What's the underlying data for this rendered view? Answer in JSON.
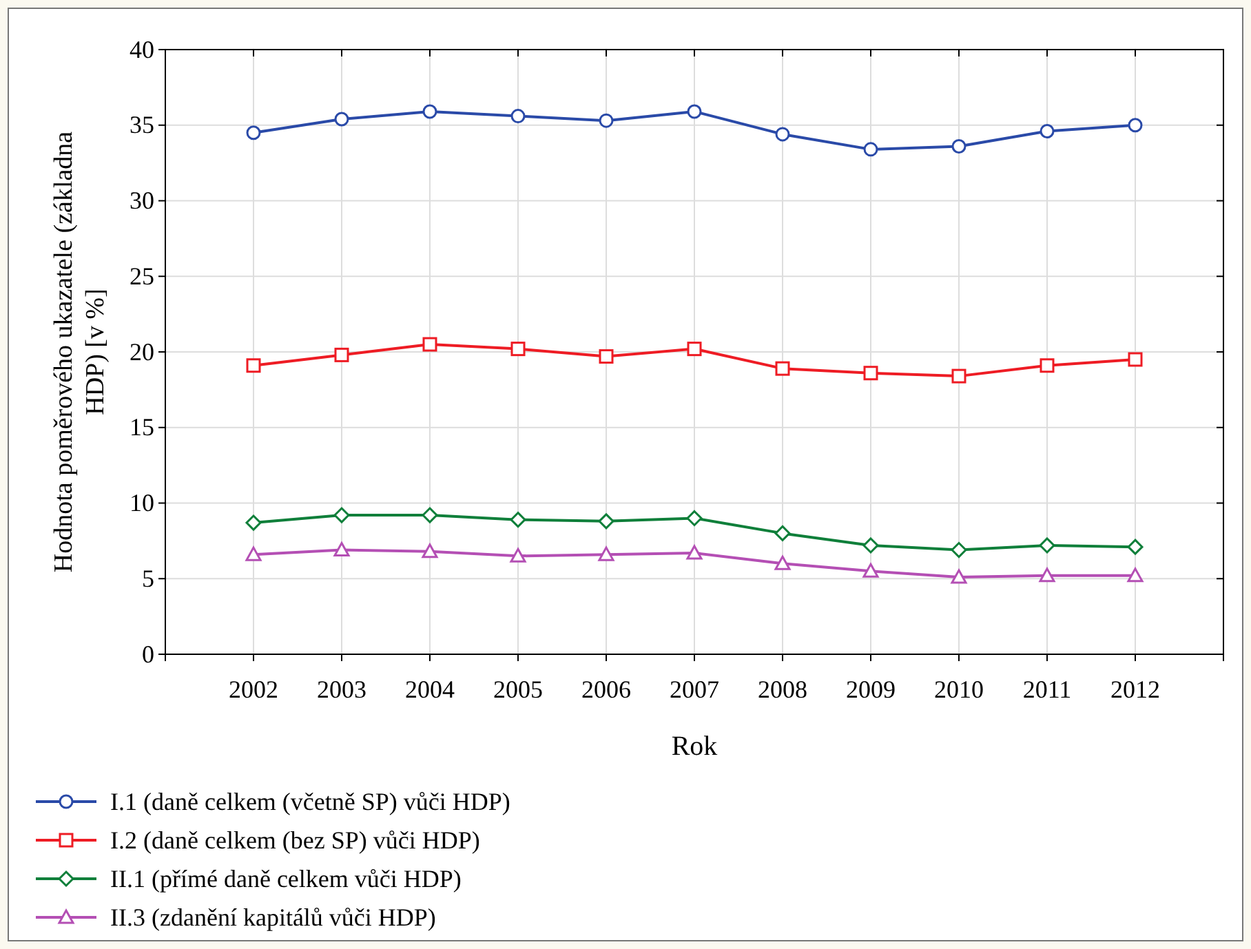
{
  "chart_data": {
    "type": "line",
    "xlabel": "Rok",
    "ylabel": "Hodnota poměrového ukazatele (základna HDP) [v %]",
    "categories": [
      "2002",
      "2003",
      "2004",
      "2005",
      "2006",
      "2007",
      "2008",
      "2009",
      "2010",
      "2011",
      "2012"
    ],
    "series": [
      {
        "name": "I.1 (daně celkem (včetně SP) vůči HDP)",
        "color": "#2a4aa8",
        "marker": "circle",
        "values": [
          34.5,
          35.4,
          35.9,
          35.6,
          35.3,
          35.9,
          34.4,
          33.4,
          33.6,
          34.6,
          35.0
        ]
      },
      {
        "name": "I.2 (daně celkem (bez SP) vůči HDP)",
        "color": "#ee1c24",
        "marker": "square",
        "values": [
          19.1,
          19.8,
          20.5,
          20.2,
          19.7,
          20.2,
          18.9,
          18.6,
          18.4,
          19.1,
          19.5
        ]
      },
      {
        "name": "II.1 (přímé daně celkem vůči HDP)",
        "color": "#0f7f3a",
        "marker": "diamond",
        "values": [
          8.7,
          9.2,
          9.2,
          8.9,
          8.8,
          9.0,
          8.0,
          7.2,
          6.9,
          7.2,
          7.1
        ]
      },
      {
        "name": "II.3 (zdanění kapitálů vůči HDP)",
        "color": "#b44fb4",
        "marker": "triangle",
        "values": [
          6.6,
          6.9,
          6.8,
          6.5,
          6.6,
          6.7,
          6.0,
          5.5,
          5.1,
          5.2,
          5.2
        ]
      }
    ],
    "ylim": [
      0,
      40
    ],
    "yticks": [
      0,
      5,
      10,
      15,
      20,
      25,
      30,
      35,
      40
    ],
    "grid": true,
    "legend": "bottom",
    "line_style": "solid"
  }
}
